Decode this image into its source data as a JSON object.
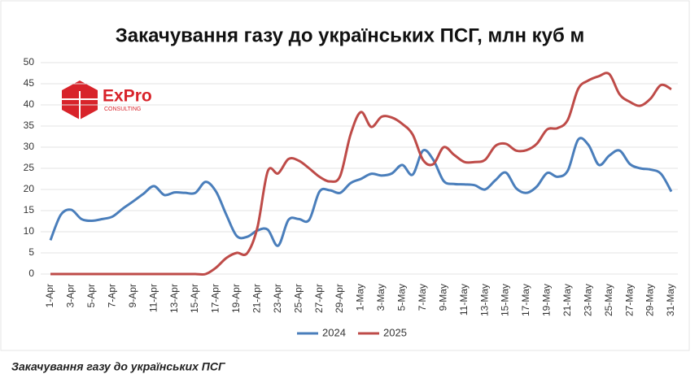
{
  "chart_data": {
    "type": "line",
    "title": "Закачування газу до українських ПСГ, млн куб м",
    "categories": [
      "1-Apr",
      null,
      "3-Apr",
      null,
      "5-Apr",
      null,
      "7-Apr",
      null,
      "9-Apr",
      null,
      "11-Apr",
      null,
      "13-Apr",
      null,
      "15-Apr",
      null,
      "17-Apr",
      null,
      "19-Apr",
      null,
      "21-Apr",
      null,
      "23-Apr",
      null,
      "25-Apr",
      null,
      "27-Apr",
      null,
      "29-Apr",
      null,
      "1-May",
      null,
      "3-May",
      null,
      "5-May",
      null,
      "7-May",
      null,
      "9-May",
      null,
      "11-May",
      null,
      "13-May",
      null,
      "15-May",
      null,
      "17-May",
      null,
      "19-May",
      null,
      "21-May",
      null,
      "23-May",
      null,
      "25-May",
      null,
      "27-May",
      null,
      "29-May",
      null,
      "31-May"
    ],
    "series": [
      {
        "name": "2024",
        "color": "#4a7ebb",
        "values": [
          8,
          14,
          15.2,
          13,
          12.6,
          13,
          13.6,
          15.5,
          17.2,
          19,
          20.8,
          18.7,
          19.3,
          19.2,
          19.2,
          21.8,
          19.5,
          14,
          9,
          8.8,
          10.3,
          10.5,
          6.7,
          12.8,
          13,
          12.8,
          19.5,
          19.8,
          19.2,
          21.5,
          22.5,
          23.7,
          23.3,
          23.8,
          25.8,
          23.5,
          29.2,
          27,
          22,
          21.3,
          21.2,
          21,
          20,
          22.2,
          24,
          20.3,
          19.2,
          20.7,
          23.9,
          23,
          24.5,
          31.8,
          30.5,
          25.8,
          28,
          29.2,
          26,
          25,
          24.7,
          23.7,
          19.5
        ]
      },
      {
        "name": "2025",
        "color": "#be4b48",
        "values": [
          0,
          0,
          0,
          0,
          0,
          0,
          0,
          0,
          0,
          0,
          0,
          0,
          0,
          0,
          0,
          0,
          1.5,
          3.8,
          5,
          4.9,
          11,
          24.3,
          23.8,
          27.2,
          26.8,
          25,
          23,
          21.9,
          23.2,
          33,
          38.3,
          34.8,
          37.2,
          37,
          35.5,
          33,
          27,
          26,
          30,
          28.2,
          26.5,
          26.5,
          27,
          30.3,
          30.8,
          29.2,
          29.3,
          30.8,
          34.2,
          34.5,
          36.5,
          43.8,
          45.8,
          46.8,
          47.3,
          42.5,
          40.7,
          39.8,
          41.5,
          44.7,
          43.7
        ]
      }
    ],
    "ylim": [
      0,
      50
    ],
    "yticks": [
      0,
      5,
      10,
      15,
      20,
      25,
      30,
      35,
      40,
      45,
      50
    ],
    "grid": true,
    "legend": "bottom"
  },
  "logo": {
    "text": "ExPro",
    "subtext": "CONSULTING"
  },
  "caption": "Закачування газу до українських ПСГ"
}
